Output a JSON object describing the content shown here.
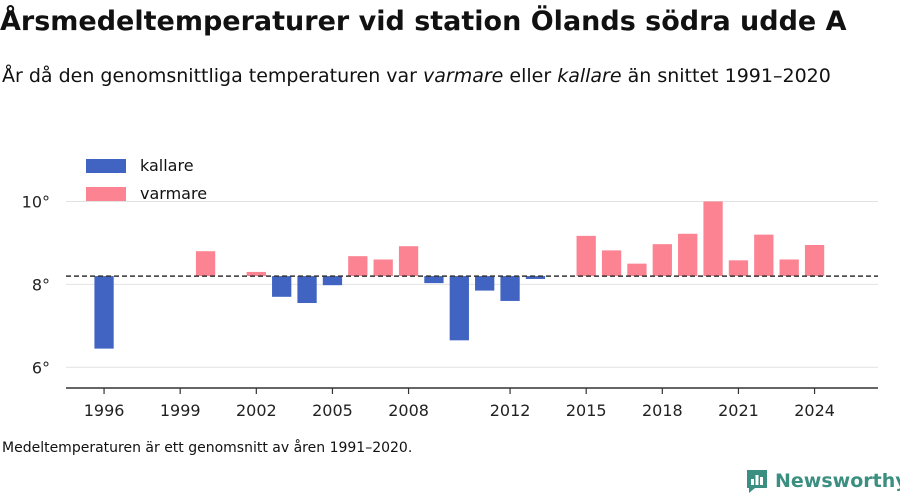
{
  "title": "Årsmedeltemperaturer vid station Ölands södra udde A",
  "subtitle": {
    "part1": "År då den genomsnittliga temperaturen var ",
    "warmer_word": "varmare",
    "part2": " eller ",
    "colder_word": "kallare",
    "part3": " än snittet 1991–2020"
  },
  "footnote": "Medeltemperaturen är ett genomsnitt av åren 1991–2020.",
  "brand": "Newsworthy",
  "colors": {
    "colder": "#4164c2",
    "warmer": "#fc8391",
    "grid": "#e2e2e2",
    "axis": "#333333",
    "mean": "#333333",
    "brand": "#3a8f80"
  },
  "chart_data": {
    "type": "bar",
    "baseline": 8.2,
    "ylim": [
      5.5,
      11
    ],
    "yticks": [
      6,
      8,
      10
    ],
    "ytick_labels": [
      "6°",
      "8°",
      "10°"
    ],
    "xticks": [
      1996,
      1999,
      2002,
      2005,
      2008,
      2012,
      2015,
      2018,
      2021,
      2024
    ],
    "xlim": [
      1994.5,
      2026.5
    ],
    "legend": [
      {
        "key": "colder",
        "label": "kallare"
      },
      {
        "key": "warmer",
        "label": "varmare"
      }
    ],
    "legend_position": "top-left",
    "grid": true,
    "data": [
      {
        "year": 1996,
        "value": 6.45
      },
      {
        "year": 2000,
        "value": 8.8
      },
      {
        "year": 2002,
        "value": 8.3
      },
      {
        "year": 2003,
        "value": 7.7
      },
      {
        "year": 2004,
        "value": 7.55
      },
      {
        "year": 2005,
        "value": 7.98
      },
      {
        "year": 2006,
        "value": 8.68
      },
      {
        "year": 2007,
        "value": 8.6
      },
      {
        "year": 2008,
        "value": 8.92
      },
      {
        "year": 2009,
        "value": 8.03
      },
      {
        "year": 2010,
        "value": 6.65
      },
      {
        "year": 2011,
        "value": 7.85
      },
      {
        "year": 2012,
        "value": 7.6
      },
      {
        "year": 2013,
        "value": 8.13
      },
      {
        "year": 2015,
        "value": 9.17
      },
      {
        "year": 2016,
        "value": 8.82
      },
      {
        "year": 2017,
        "value": 8.5
      },
      {
        "year": 2018,
        "value": 8.97
      },
      {
        "year": 2019,
        "value": 9.22
      },
      {
        "year": 2020,
        "value": 10.0
      },
      {
        "year": 2021,
        "value": 8.58
      },
      {
        "year": 2022,
        "value": 9.2
      },
      {
        "year": 2023,
        "value": 8.6
      },
      {
        "year": 2024,
        "value": 8.95
      }
    ]
  }
}
